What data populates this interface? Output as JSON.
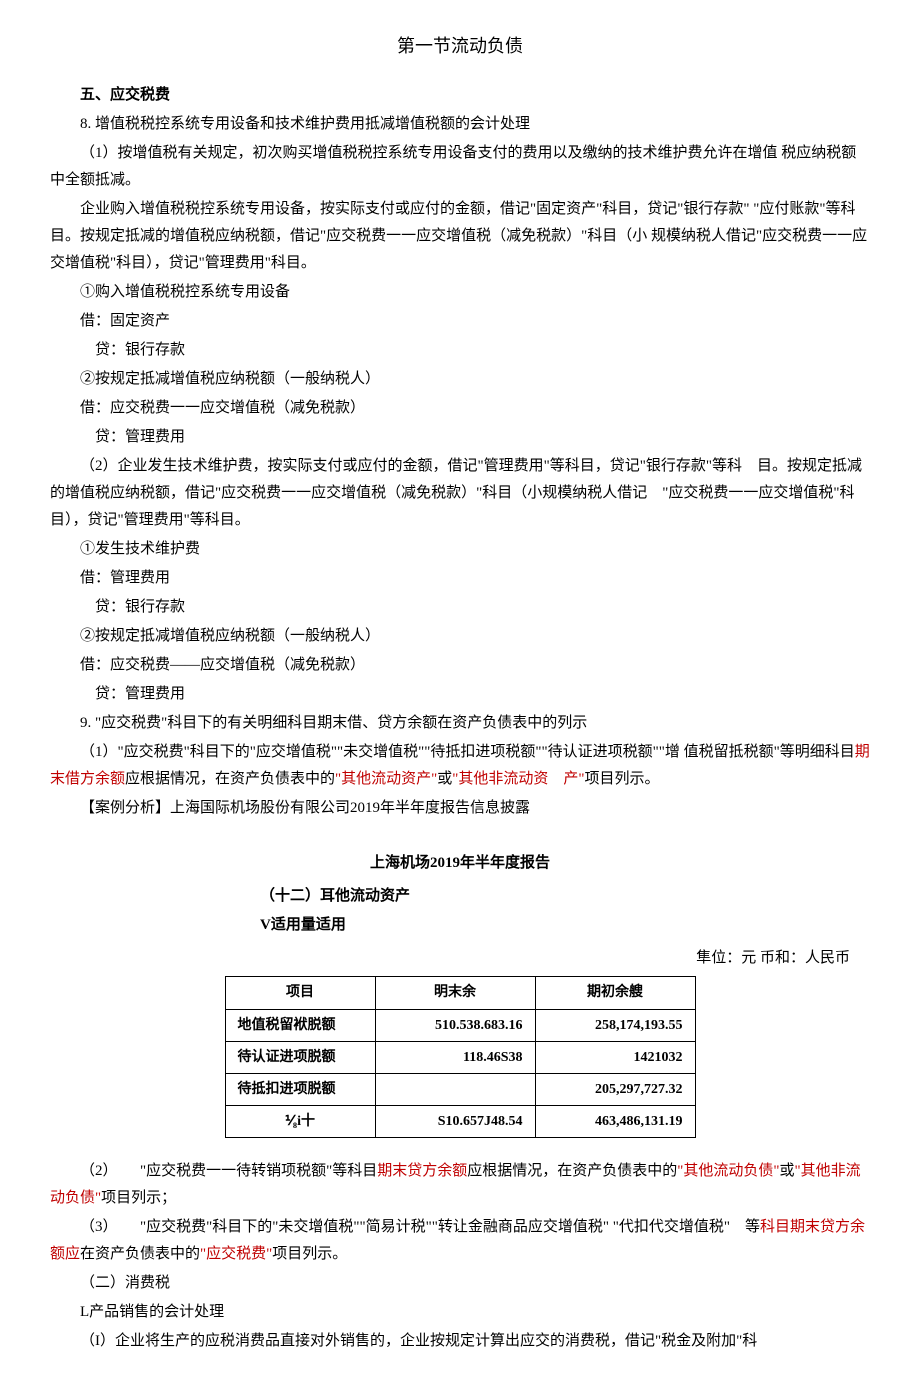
{
  "page_title": "第一节流动负债",
  "h_five": "五、应交税费",
  "p8": "8. 增值税税控系统专用设备和技术维护费用抵减增值税额的会计处理",
  "p8_1": "（1）按增值税有关规定，初次购买增值税税控系统专用设备支付的费用以及缴纳的技术维护费允许在增值 税应纳税额中全额抵减。",
  "p8_2": "企业购入增值税税控系统专用设备，按实际支付或应付的金额，借记\"固定资产\"科目，贷记\"银行存款\" \"应付账款\"等科目。按规定抵减的增值税应纳税额，借记\"应交税费一一应交增值税（减免税款）\"科目（小 规模纳税人借记\"应交税费一一应交增值税\"科目），贷记\"管理费用\"科目。",
  "p8_3": "①购入增值税税控系统专用设备",
  "p8_4": "借：固定资产",
  "p8_5": "贷：银行存款",
  "p8_6": "②按规定抵减增值税应纳税额（一般纳税人）",
  "p8_7": "借：应交税费一一应交增值税（减免税款）",
  "p8_8": "贷：管理费用",
  "p8_9": "（2）企业发生技术维护费，按实际支付或应付的金额，借记\"管理费用\"等科目，贷记\"银行存款\"等科　目。按规定抵减的增值税应纳税额，借记\"应交税费一一应交增值税（减免税款）\"科目（小规模纳税人借记　\"应交税费一一应交增值税\"科目），贷记\"管理费用\"等科目。",
  "p8_10": "①发生技术维护费",
  "p8_11": "借：管理费用",
  "p8_12": "贷：银行存款",
  "p8_13": "②按规定抵减增值税应纳税额（一般纳税人）",
  "p8_14": "借：应交税费——应交增值税（减免税款）",
  "p8_15": "贷：管理费用",
  "p9": "9. \"应交税费\"科目下的有关明细科目期末借、贷方余额在资产负债表中的列示",
  "p9_1_pre": "（1）\"应交税费\"科目下的\"应交增值税\"\"未交增值税\"\"待抵扣进项税额\"\"待认证进项税额\"\"增 值税留抵税额\"等明细科目",
  "p9_1_red1": "期末借方余额",
  "p9_1_mid1": "应根据情况，在资产负债表中的",
  "p9_1_red2": "\"其他流动资产\"",
  "p9_1_mid2": "或",
  "p9_1_red3": "\"其他非流动资　产\"",
  "p9_1_end": "项目列示。",
  "case_label": "【案例分析】上海国际机场股份有限公司2019年半年度报告信息披露",
  "table_title": "上海机场2019年半年度报告",
  "sub_h1": "（十二）耳他流动资产",
  "sub_h2": "V适用量适用",
  "unit_line": "隼位：元 币和：人民币",
  "table": {
    "headers": [
      "项目",
      "明末余",
      "期初余艘"
    ],
    "rows": [
      [
        "地值税留袱脱额",
        "510.538.683.16",
        "258,174,193.55"
      ],
      [
        "待认证进项脱额",
        "118.46S38",
        "1421032"
      ],
      [
        "待抵扣进项脱额",
        "",
        "205,297,727.32"
      ],
      [
        "⅟₈i十",
        "S10.657J48.54",
        "463,486,131.19"
      ]
    ],
    "col_align": [
      "left",
      "right",
      "right"
    ],
    "border_color": "#000000",
    "header_bg": "#ffffff"
  },
  "p9_2_pre": "（2）　　\"应交税费一一待转销项税额\"等科目",
  "p9_2_red1": "期末贷方余额",
  "p9_2_mid1": "应根据情况，在资产负债表中的",
  "p9_2_red2": "\"其他流动负债\"",
  "p9_2_mid2": "或",
  "p9_2_red3": "\"其他非流动负债\"",
  "p9_2_end": "项目列示；",
  "p9_3_pre": "（3）　　\"应交税费\"科目下的\"未交增值税\"\"简易计税\"\"转让金融商品应交增值税\" \"代扣代交增值税\"　等",
  "p9_3_red1": "科目期末贷方余额应",
  "p9_3_mid": "在资产负债表中的",
  "p9_3_red2": "\"应交税费\"",
  "p9_3_end": "项目列示。",
  "h_two": "（二）消费税",
  "pL": "L产品销售的会计处理",
  "pI": "（I）企业将生产的应税消费品直接对外销售的，企业按规定计算出应交的消费税，借记\"税金及附加\"科",
  "colors": {
    "text": "#000000",
    "highlight": "#c00000",
    "background": "#ffffff"
  }
}
